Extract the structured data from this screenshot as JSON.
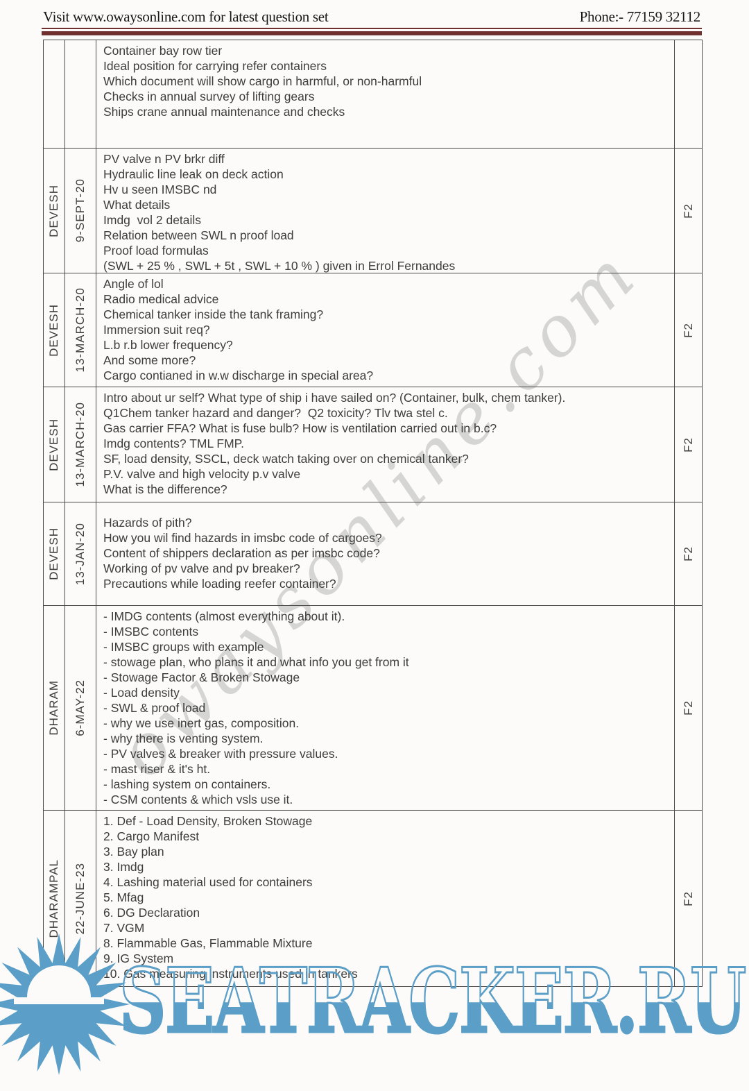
{
  "header": {
    "left": "Visit www.owaysonline.com for latest question set",
    "right": "Phone:- 77159 32112"
  },
  "table": {
    "rows": [
      {
        "name": "",
        "date": "",
        "f2": "",
        "lines": [
          "Container bay row tier",
          "Ideal position for carrying refer containers",
          "Which document will show cargo in harmful, or non-harmful",
          "Checks in annual survey of lifting gears",
          "Ships crane annual maintenance and checks"
        ]
      },
      {
        "name": "DEVESH",
        "date": "9-SEPT-20",
        "f2": "F2",
        "lines": [
          "PV valve n PV brkr diff",
          "Hydraulic line leak on deck action",
          "Hv u seen IMSBC nd",
          "What details",
          "Imdg  vol 2 details",
          "Relation between SWL n proof load",
          "Proof load formulas",
          "(SWL + 25 % , SWL + 5t , SWL + 10 % ) given in Errol Fernandes"
        ]
      },
      {
        "name": "DEVESH",
        "date": "13-MARCH-20",
        "f2": "F2",
        "lines": [
          "Angle of lol",
          "Radio medical advice",
          "Chemical tanker inside the tank framing?",
          "Immersion suit req?",
          "L.b r.b lower frequency?",
          "And some more?",
          "Cargo contianed in w.w discharge in special area?"
        ]
      },
      {
        "name": "DEVESH",
        "date": "13-MARCH-20",
        "f2": "F2",
        "lines": [
          "Intro about ur self? What type of ship i have sailed on? (Container, bulk, chem tanker).",
          "Q1Chem tanker hazard and danger?  Q2 toxicity? Tlv twa stel c.",
          "Gas carrier FFA? What is fuse bulb? How is ventilation carried out in b.c?",
          "Imdg contents? TML FMP.",
          "SF, load density, SSCL, deck watch taking over on chemical tanker?",
          "P.V. valve and high velocity p.v valve",
          "What is the difference?"
        ]
      },
      {
        "name": "DEVESH",
        "date": "13-JAN-20",
        "f2": "F2",
        "lines": [
          "Hazards of pith?",
          "How you wil find hazards in imsbc code of cargoes?",
          "Content of shippers declaration as per imsbc code?",
          "Working of pv valve and pv breaker?",
          "Precautions while loading reefer container?"
        ]
      },
      {
        "name": "DHARAM",
        "date": "6-MAY-22",
        "f2": "F2",
        "lines": [
          "- IMDG contents (almost everything about it).",
          "- IMSBC contents",
          "- IMSBC groups with example",
          "- stowage plan, who plans it and what info you get from it",
          "- Stowage Factor & Broken Stowage",
          "- Load density",
          "- SWL & proof load",
          "- why we use inert gas, composition.",
          "- why there is venting system.",
          "- PV valves & breaker with pressure values.",
          "- mast riser & it's ht.",
          "- lashing system on containers.",
          "- CSM contents & which vsls use it."
        ]
      },
      {
        "name": "DHARAMPAL",
        "date": "22-JUNE-23",
        "f2": "F2",
        "lines": [
          "1. Def - Load Density, Broken Stowage",
          "2. Cargo Manifest",
          "3. Bay plan",
          "3. Imdg",
          "4. Lashing material used for containers",
          "5. Mfag",
          "6. DG Declaration",
          "7. VGM",
          "8. Flammable Gas, Flammable Mixture",
          "9. IG System",
          "10. Gas measuring instruments used in tankers"
        ]
      }
    ]
  },
  "watermarks": {
    "diagonal_text": "owaysonline.com",
    "site_text": "SEATRACKER.RU",
    "colors": {
      "blue": "#5b9fc8",
      "gray": "#b0b0b0",
      "rule": "#703030"
    }
  }
}
